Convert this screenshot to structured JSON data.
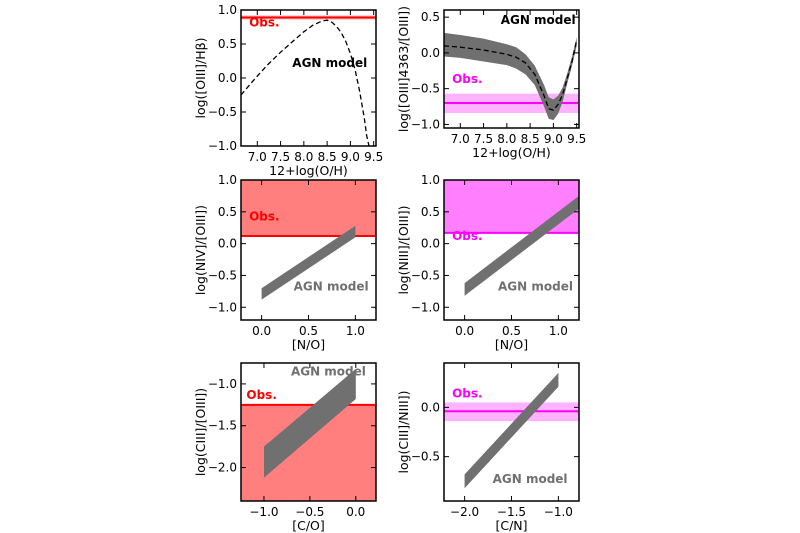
{
  "chart_data": [
    {
      "type": "line",
      "xlabel": "12+log(O/H)",
      "ylabel": "log([OIII]/Hβ)",
      "xlim": [
        6.65,
        9.55
      ],
      "ylim": [
        -1.0,
        1.0
      ],
      "xticks": [
        7.0,
        7.5,
        8.0,
        8.5,
        9.0,
        9.5
      ],
      "xtick_labels": [
        "7.0",
        "7.5",
        "8.0",
        "8.5",
        "9.0",
        "9.5"
      ],
      "yticks": [
        -1.0,
        -0.5,
        0.0,
        0.5,
        1.0
      ],
      "ytick_labels": [
        "−1.0",
        "−0.5",
        "0.0",
        "0.5",
        "1.0"
      ],
      "obs": {
        "type": "line",
        "value": 0.89,
        "band": [
          0.86,
          0.92
        ],
        "color": "#ff0000",
        "label": "Obs."
      },
      "model": {
        "style": "dashed",
        "color": "#000000",
        "label": "AGN model",
        "label_color": "#000000",
        "x": [
          6.65,
          6.9,
          7.2,
          7.5,
          7.8,
          8.0,
          8.2,
          8.4,
          8.5,
          8.6,
          8.7,
          8.8,
          8.9,
          9.0,
          9.1,
          9.2,
          9.3,
          9.35,
          9.4
        ],
        "y": [
          -0.25,
          -0.05,
          0.18,
          0.38,
          0.56,
          0.68,
          0.78,
          0.84,
          0.85,
          0.82,
          0.76,
          0.67,
          0.54,
          0.36,
          0.12,
          -0.2,
          -0.6,
          -0.85,
          -1.0
        ]
      }
    },
    {
      "type": "area",
      "xlabel": "12+log(O/H)",
      "ylabel": "log([OIII]4363/[OIII])",
      "xlim": [
        6.65,
        9.55
      ],
      "ylim": [
        -1.05,
        0.6
      ],
      "xticks": [
        7.0,
        7.5,
        8.0,
        8.5,
        9.0,
        9.5
      ],
      "xtick_labels": [
        "7.0",
        "7.5",
        "8.0",
        "8.5",
        "9.0",
        "9.5"
      ],
      "yticks": [
        -1.0,
        -0.5,
        0.0,
        0.5
      ],
      "ytick_labels": [
        "−1.0",
        "−0.5",
        "0.0",
        "0.5"
      ],
      "obs": {
        "type": "line",
        "value": -0.7,
        "band": [
          -0.84,
          -0.57
        ],
        "color": "#ff00ff",
        "label": "Obs."
      },
      "model": {
        "style": "dashed-band",
        "color": "#000000",
        "band_color": "#707070",
        "label": "AGN model",
        "label_color": "#000000",
        "x": [
          6.65,
          7.0,
          7.5,
          8.0,
          8.2,
          8.4,
          8.6,
          8.8,
          8.9,
          9.0,
          9.1,
          9.2,
          9.3,
          9.4,
          9.5
        ],
        "y": [
          0.1,
          0.08,
          0.04,
          -0.02,
          -0.06,
          -0.14,
          -0.3,
          -0.6,
          -0.78,
          -0.8,
          -0.72,
          -0.58,
          -0.35,
          -0.12,
          0.18
        ],
        "upper": [
          0.28,
          0.25,
          0.2,
          0.12,
          0.08,
          -0.02,
          -0.18,
          -0.45,
          -0.62,
          -0.65,
          -0.6,
          -0.48,
          -0.28,
          -0.05,
          0.22
        ],
        "lower": [
          -0.05,
          -0.07,
          -0.12,
          -0.17,
          -0.22,
          -0.3,
          -0.45,
          -0.75,
          -0.92,
          -0.94,
          -0.85,
          -0.68,
          -0.42,
          -0.18,
          0.1
        ]
      }
    },
    {
      "type": "area",
      "xlabel": "[N/O]",
      "ylabel": "log(NIV]/[OIII])",
      "xlim": [
        -0.22,
        1.22
      ],
      "ylim": [
        -1.2,
        1.0
      ],
      "xticks": [
        0.0,
        0.5,
        1.0
      ],
      "xtick_labels": [
        "0.0",
        "0.5",
        "1.0"
      ],
      "yticks": [
        -1.0,
        -0.5,
        0.0,
        0.5,
        1.0
      ],
      "ytick_labels": [
        "−1.0",
        "−0.5",
        "0.0",
        "0.5",
        "1.0"
      ],
      "obs": {
        "type": "lower-limit",
        "value": 0.12,
        "color": "#ff0000",
        "fill": "rgba(255,0,0,0.5)",
        "label": "Obs."
      },
      "model": {
        "style": "band",
        "band_color": "#707070",
        "label": "AGN model",
        "label_color": "#707070",
        "x": [
          0.0,
          1.0
        ],
        "upper": [
          -0.7,
          0.28
        ],
        "lower": [
          -0.88,
          0.1
        ]
      }
    },
    {
      "type": "area",
      "xlabel": "[N/O]",
      "ylabel": "log(NIII]/[OIII])",
      "xlim": [
        -0.22,
        1.22
      ],
      "ylim": [
        -1.2,
        1.0
      ],
      "xticks": [
        0.0,
        0.5,
        1.0
      ],
      "xtick_labels": [
        "0.0",
        "0.5",
        "1.0"
      ],
      "yticks": [
        -1.0,
        -0.5,
        0.0,
        0.5,
        1.0
      ],
      "ytick_labels": [
        "−1.0",
        "−0.5",
        "0.0",
        "0.5",
        "1.0"
      ],
      "obs": {
        "type": "lower-limit",
        "value": 0.17,
        "color": "#ff00ff",
        "fill": "rgba(255,0,255,0.5)",
        "label": "Obs."
      },
      "model": {
        "style": "band",
        "band_color": "#707070",
        "label": "AGN model",
        "label_color": "#707070",
        "x": [
          0.0,
          1.22
        ],
        "upper": [
          -0.62,
          0.75
        ],
        "lower": [
          -0.82,
          0.55
        ]
      }
    },
    {
      "type": "area",
      "xlabel": "[C/O]",
      "ylabel": "log(CIII]/[OIII])",
      "xlim": [
        -1.25,
        0.22
      ],
      "ylim": [
        -2.4,
        -0.75
      ],
      "xticks": [
        -1.0,
        -0.5,
        0.0
      ],
      "xtick_labels": [
        "−1.0",
        "−0.5",
        "0.0"
      ],
      "yticks": [
        -2.0,
        -1.5,
        -1.0
      ],
      "ytick_labels": [
        "−2.0",
        "−1.5",
        "−1.0"
      ],
      "obs": {
        "type": "upper-limit",
        "value": -1.25,
        "color": "#ff0000",
        "fill": "rgba(255,0,0,0.5)",
        "label": "Obs."
      },
      "model": {
        "style": "band",
        "band_color": "#707070",
        "label": "AGN model",
        "label_color": "#707070",
        "x": [
          -1.0,
          0.0
        ],
        "upper": [
          -1.75,
          -0.82
        ],
        "lower": [
          -2.12,
          -1.18
        ]
      }
    },
    {
      "type": "area",
      "xlabel": "[C/N]",
      "ylabel": "log(CIII]/NIII])",
      "xlim": [
        -2.22,
        -0.78
      ],
      "ylim": [
        -0.95,
        0.45
      ],
      "xticks": [
        -2.0,
        -1.5,
        -1.0
      ],
      "xtick_labels": [
        "−2.0",
        "−1.5",
        "−1.0"
      ],
      "yticks": [
        -0.5,
        0.0
      ],
      "ytick_labels": [
        "−0.5",
        "0.0"
      ],
      "obs": {
        "type": "line",
        "value": -0.04,
        "band": [
          -0.14,
          0.05
        ],
        "color": "#ff00ff",
        "label": "Obs."
      },
      "model": {
        "style": "band",
        "band_color": "#707070",
        "label": "AGN model",
        "label_color": "#707070",
        "x": [
          -2.0,
          -1.0
        ],
        "upper": [
          -0.68,
          0.35
        ],
        "lower": [
          -0.82,
          0.21
        ]
      }
    }
  ]
}
